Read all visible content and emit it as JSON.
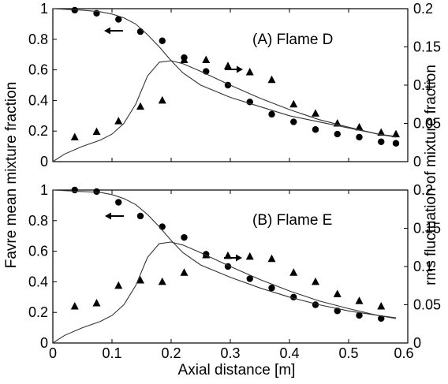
{
  "chart_data": [
    {
      "type": "scatter",
      "title": "(A) Flame D",
      "xlabel": "Axial distance [m]",
      "ylabel": "Favre mean mixture fraction",
      "y2label": "rms fluctuation of mixture fraction",
      "xlim": [
        0,
        0.6
      ],
      "ylim": [
        0,
        1
      ],
      "y2lim": [
        0,
        0.2
      ],
      "xticks": [
        "0",
        "0.1",
        "0.2",
        "0.3",
        "0.4",
        "0.5",
        "0.6"
      ],
      "yticks": [
        "0",
        "0.2",
        "0.4",
        "0.6",
        "0.8",
        "1"
      ],
      "y2ticks": [
        "0",
        "0.05",
        "0.1",
        "0.15",
        "0.2"
      ],
      "series": [
        {
          "marker": "circle",
          "axis": "left",
          "x": [
            0.037,
            0.074,
            0.111,
            0.148,
            0.185,
            0.222,
            0.259,
            0.296,
            0.333,
            0.37,
            0.407,
            0.444,
            0.481,
            0.518,
            0.555,
            0.58
          ],
          "y": [
            0.99,
            0.97,
            0.93,
            0.85,
            0.79,
            0.68,
            0.59,
            0.5,
            0.39,
            0.31,
            0.26,
            0.21,
            0.18,
            0.16,
            0.13,
            0.12
          ]
        },
        {
          "marker": "triangle",
          "axis": "right",
          "x": [
            0.037,
            0.074,
            0.111,
            0.148,
            0.185,
            0.222,
            0.259,
            0.296,
            0.333,
            0.37,
            0.407,
            0.444,
            0.481,
            0.518,
            0.555,
            0.58
          ],
          "y": [
            0.032,
            0.039,
            0.053,
            0.072,
            0.08,
            0.133,
            0.133,
            0.125,
            0.117,
            0.107,
            0.075,
            0.063,
            0.05,
            0.045,
            0.038,
            0.036
          ]
        },
        {
          "marker": "line",
          "axis": "left",
          "x": [
            0.0,
            0.05,
            0.08,
            0.1,
            0.12,
            0.14,
            0.16,
            0.18,
            0.2,
            0.22,
            0.25,
            0.3,
            0.35,
            0.4,
            0.45,
            0.5,
            0.55,
            0.58
          ],
          "y": [
            1.0,
            0.99,
            0.98,
            0.965,
            0.94,
            0.9,
            0.83,
            0.75,
            0.66,
            0.58,
            0.5,
            0.42,
            0.36,
            0.3,
            0.26,
            0.22,
            0.18,
            0.16
          ]
        },
        {
          "marker": "line",
          "axis": "right",
          "x": [
            0.0,
            0.02,
            0.05,
            0.08,
            0.1,
            0.12,
            0.14,
            0.16,
            0.18,
            0.2,
            0.22,
            0.25,
            0.3,
            0.35,
            0.4,
            0.45,
            0.5,
            0.55,
            0.58
          ],
          "y": [
            0.0,
            0.01,
            0.02,
            0.028,
            0.036,
            0.05,
            0.075,
            0.112,
            0.13,
            0.132,
            0.128,
            0.118,
            0.1,
            0.083,
            0.068,
            0.055,
            0.045,
            0.036,
            0.033
          ]
        }
      ],
      "annotations": {
        "left_arrow": true,
        "right_arrow": true
      }
    },
    {
      "type": "scatter",
      "title": "(B) Flame E",
      "xlabel": "Axial distance [m]",
      "ylabel": "Favre mean mixture fraction",
      "y2label": "rms fluctuation of mixture fraction",
      "xlim": [
        0,
        0.6
      ],
      "ylim": [
        0,
        1
      ],
      "y2lim": [
        0,
        0.2
      ],
      "xticks": [
        "0",
        "0.1",
        "0.2",
        "0.3",
        "0.4",
        "0.5",
        "0.6"
      ],
      "yticks": [
        "0",
        "0.2",
        "0.4",
        "0.6",
        "0.8",
        "1"
      ],
      "y2ticks": [
        "0",
        "0.05",
        "0.1",
        "0.15",
        "0.2"
      ],
      "series": [
        {
          "marker": "circle",
          "axis": "left",
          "x": [
            0.037,
            0.074,
            0.111,
            0.148,
            0.185,
            0.222,
            0.259,
            0.296,
            0.333,
            0.37,
            0.407,
            0.444,
            0.481,
            0.518,
            0.555
          ],
          "y": [
            1.0,
            0.99,
            0.92,
            0.83,
            0.76,
            0.69,
            0.58,
            0.5,
            0.42,
            0.36,
            0.3,
            0.25,
            0.21,
            0.18,
            0.16
          ]
        },
        {
          "marker": "triangle",
          "axis": "right",
          "x": [
            0.037,
            0.074,
            0.111,
            0.148,
            0.185,
            0.222,
            0.259,
            0.296,
            0.333,
            0.37,
            0.407,
            0.444,
            0.481,
            0.518,
            0.555
          ],
          "y": [
            0.048,
            0.052,
            0.075,
            0.082,
            0.08,
            0.092,
            0.115,
            0.114,
            0.113,
            0.11,
            0.092,
            0.08,
            0.064,
            0.055,
            0.048
          ]
        },
        {
          "marker": "line",
          "axis": "left",
          "x": [
            0.0,
            0.05,
            0.08,
            0.1,
            0.12,
            0.14,
            0.16,
            0.18,
            0.2,
            0.22,
            0.25,
            0.3,
            0.35,
            0.4,
            0.45,
            0.5,
            0.55,
            0.58
          ],
          "y": [
            1.0,
            0.99,
            0.985,
            0.97,
            0.945,
            0.905,
            0.84,
            0.76,
            0.67,
            0.59,
            0.51,
            0.43,
            0.36,
            0.3,
            0.25,
            0.21,
            0.18,
            0.16
          ]
        },
        {
          "marker": "line",
          "axis": "right",
          "x": [
            0.0,
            0.02,
            0.05,
            0.08,
            0.1,
            0.12,
            0.14,
            0.16,
            0.18,
            0.2,
            0.22,
            0.25,
            0.3,
            0.35,
            0.4,
            0.45,
            0.5,
            0.55,
            0.58
          ],
          "y": [
            0.0,
            0.01,
            0.02,
            0.028,
            0.036,
            0.05,
            0.075,
            0.112,
            0.13,
            0.132,
            0.128,
            0.118,
            0.1,
            0.083,
            0.068,
            0.055,
            0.045,
            0.036,
            0.033
          ]
        }
      ],
      "annotations": {
        "left_arrow": true,
        "right_arrow": true
      }
    }
  ]
}
